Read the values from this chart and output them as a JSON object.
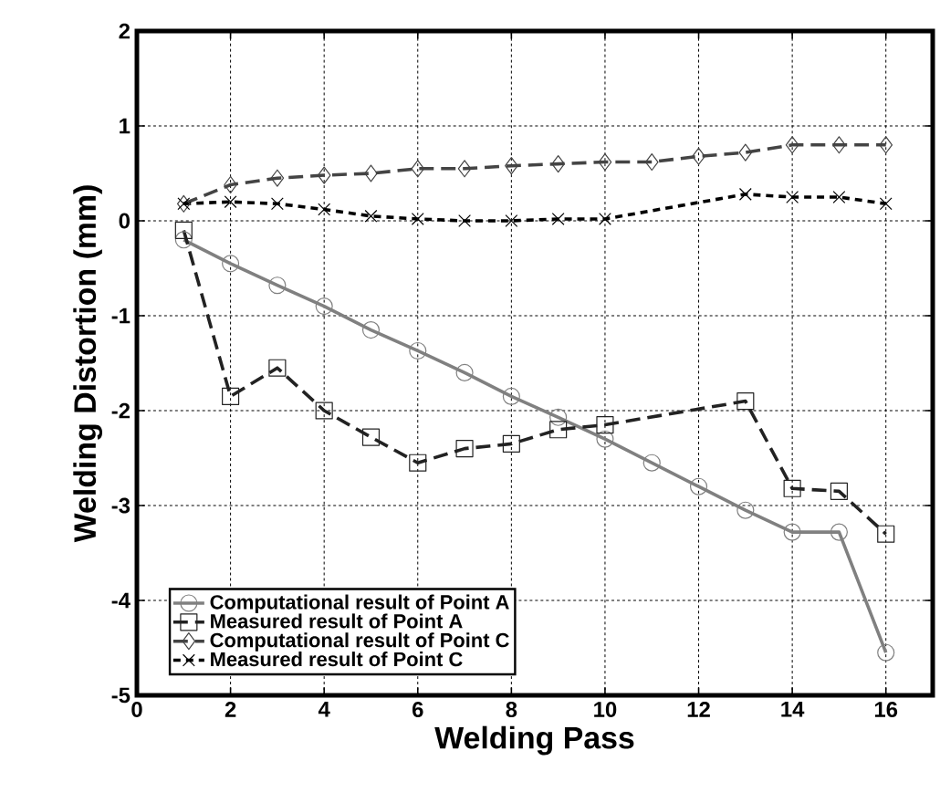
{
  "chart_data": {
    "type": "line",
    "xlabel": "Welding Pass",
    "ylabel": "Welding Distortion (mm)",
    "xlim": [
      0,
      17
    ],
    "xticks": [
      0,
      2,
      4,
      6,
      8,
      10,
      12,
      14,
      16
    ],
    "ylim": [
      -5,
      2
    ],
    "yticks": [
      -5,
      -4,
      -3,
      -2,
      -1,
      0,
      1,
      2
    ],
    "grid": true,
    "legend": "bottom left",
    "series": [
      {
        "name": "Computational result of Point A",
        "color": "#808080",
        "marker": "circle",
        "line_style": "solid",
        "x": [
          1,
          2,
          3,
          4,
          5,
          6,
          7,
          8,
          9,
          10,
          11,
          12,
          13,
          14,
          15,
          16
        ],
        "values": [
          -0.2,
          -0.45,
          -0.68,
          -0.9,
          -1.15,
          -1.37,
          -1.6,
          -1.85,
          -2.07,
          -2.3,
          -2.55,
          -2.8,
          -3.05,
          -3.28,
          -3.28,
          -4.55
        ]
      },
      {
        "name": "Measured result of Point A",
        "color": "#222222",
        "marker": "square",
        "line_style": "dashed",
        "x": [
          1,
          2,
          3,
          4,
          5,
          6,
          7,
          8,
          9,
          10,
          13,
          14,
          15,
          16
        ],
        "values": [
          -0.1,
          -1.85,
          -1.55,
          -2.0,
          -2.28,
          -2.55,
          -2.4,
          -2.35,
          -2.2,
          -2.15,
          -1.9,
          -2.82,
          -2.85,
          -3.3
        ]
      },
      {
        "name": "Computational result of Point C",
        "color": "#444444",
        "marker": "diamond",
        "line_style": "dashed",
        "x": [
          1,
          2,
          3,
          4,
          5,
          6,
          7,
          8,
          9,
          10,
          11,
          12,
          13,
          14,
          15,
          16
        ],
        "values": [
          0.18,
          0.38,
          0.45,
          0.48,
          0.5,
          0.55,
          0.55,
          0.58,
          0.6,
          0.62,
          0.62,
          0.68,
          0.72,
          0.8,
          0.8,
          0.8
        ]
      },
      {
        "name": "Measured result of Point C",
        "color": "#000000",
        "marker": "cross",
        "line_style": "dotted",
        "x": [
          1,
          2,
          3,
          4,
          5,
          6,
          7,
          8,
          9,
          10,
          13,
          14,
          15,
          16
        ],
        "values": [
          0.18,
          0.2,
          0.18,
          0.12,
          0.05,
          0.02,
          0.0,
          0.0,
          0.02,
          0.02,
          0.28,
          0.25,
          0.25,
          0.18
        ]
      }
    ]
  }
}
